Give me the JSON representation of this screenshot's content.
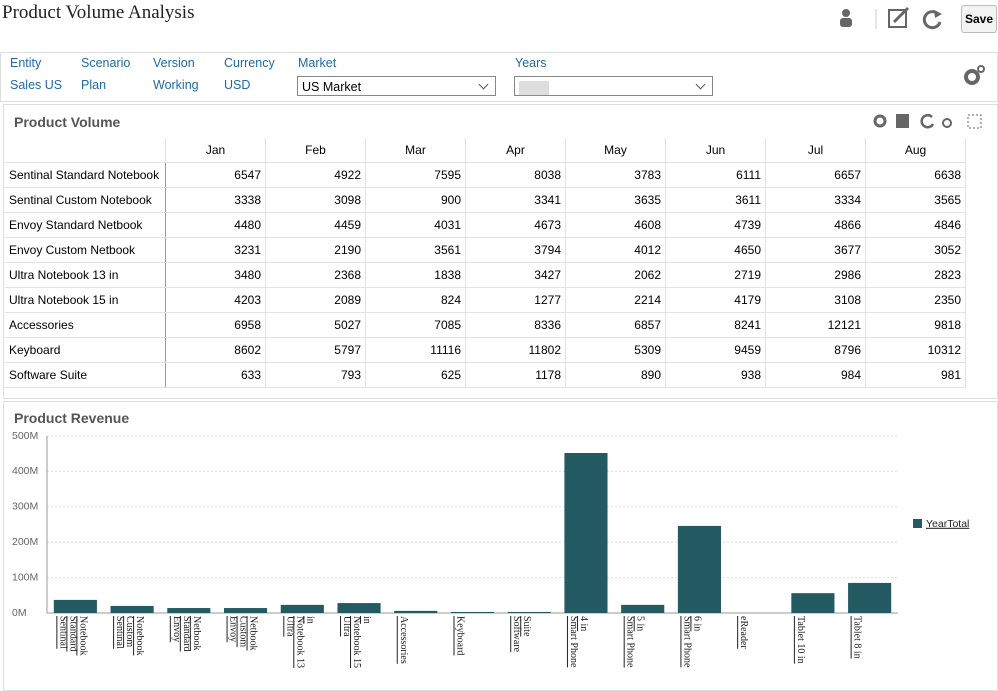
{
  "header": {
    "title": "Product Volume Analysis",
    "save_button": "Save"
  },
  "pov": [
    {
      "label": "Entity",
      "value": "Sales US"
    },
    {
      "label": "Scenario",
      "value": "Plan"
    },
    {
      "label": "Version",
      "value": "Working"
    },
    {
      "label": "Currency",
      "value": "USD"
    }
  ],
  "selectors": [
    {
      "label": "Market",
      "value": "US Market"
    },
    {
      "label": "Years"
    }
  ],
  "table": {
    "title": "Product Volume",
    "columns": [
      "Jan",
      "Feb",
      "Mar",
      "Apr",
      "May",
      "Jun",
      "Jul",
      "Aug"
    ],
    "rows": [
      {
        "label": "Sentinal Standard Notebook",
        "values": [
          6547,
          4922,
          7595,
          8038,
          3783,
          6111,
          6657,
          6638
        ]
      },
      {
        "label": "Sentinal Custom Notebook",
        "values": [
          3338,
          3098,
          900,
          3341,
          3635,
          3611,
          3334,
          3565
        ]
      },
      {
        "label": "Envoy Standard Netbook",
        "values": [
          4480,
          4459,
          4031,
          4673,
          4608,
          4739,
          4866,
          4846
        ]
      },
      {
        "label": "Envoy Custom Netbook",
        "values": [
          3231,
          2190,
          3561,
          3794,
          4012,
          4650,
          3677,
          3052
        ]
      },
      {
        "label": "Ultra Notebook 13 in",
        "values": [
          3480,
          2368,
          1838,
          3427,
          2062,
          2719,
          2986,
          2823
        ]
      },
      {
        "label": "Ultra Notebook 15 in",
        "values": [
          4203,
          2089,
          824,
          1277,
          2214,
          4179,
          3108,
          2350
        ]
      },
      {
        "label": "Accessories",
        "values": [
          6958,
          5027,
          7085,
          8336,
          6857,
          8241,
          12121,
          9818
        ]
      },
      {
        "label": "Keyboard",
        "values": [
          8602,
          5797,
          11116,
          11802,
          5309,
          9459,
          8796,
          10312
        ]
      },
      {
        "label": "Software Suite",
        "values": [
          633,
          793,
          625,
          1178,
          890,
          938,
          984,
          981
        ]
      }
    ]
  },
  "chart_data": {
    "type": "bar",
    "title": "Product Revenue",
    "categories": [
      "Sentinal Standard Notebook",
      "Sentinal Custom Notebook",
      "Envoy Standard Netbook",
      "Envoy Custom Netbook",
      "Ultra Notebook 13 in",
      "Ultra Notebook 15 in",
      "Accessories",
      "Keyboard",
      "Software Suite",
      "Smart Phone 4 in",
      "Smart Phone 5 in",
      "Smart Phone 6 in",
      "eReader",
      "Tablet 10 in",
      "Tablet 8 in"
    ],
    "series": [
      {
        "name": "YearTotal",
        "color": "#245a62",
        "values": [
          37000000,
          20000000,
          14000000,
          14000000,
          23000000,
          28000000,
          6000000,
          3000000,
          3000000,
          452000000,
          23000000,
          246000000,
          0,
          56000000,
          85000000
        ]
      }
    ],
    "ylim": [
      0,
      500000000
    ],
    "yticks": [
      {
        "value": 0,
        "label": "0M"
      },
      {
        "value": 100000000,
        "label": "100M"
      },
      {
        "value": 200000000,
        "label": "200M"
      },
      {
        "value": 300000000,
        "label": "300M"
      },
      {
        "value": 400000000,
        "label": "400M"
      },
      {
        "value": 500000000,
        "label": "500M"
      }
    ],
    "grid": true,
    "legend": "right"
  }
}
